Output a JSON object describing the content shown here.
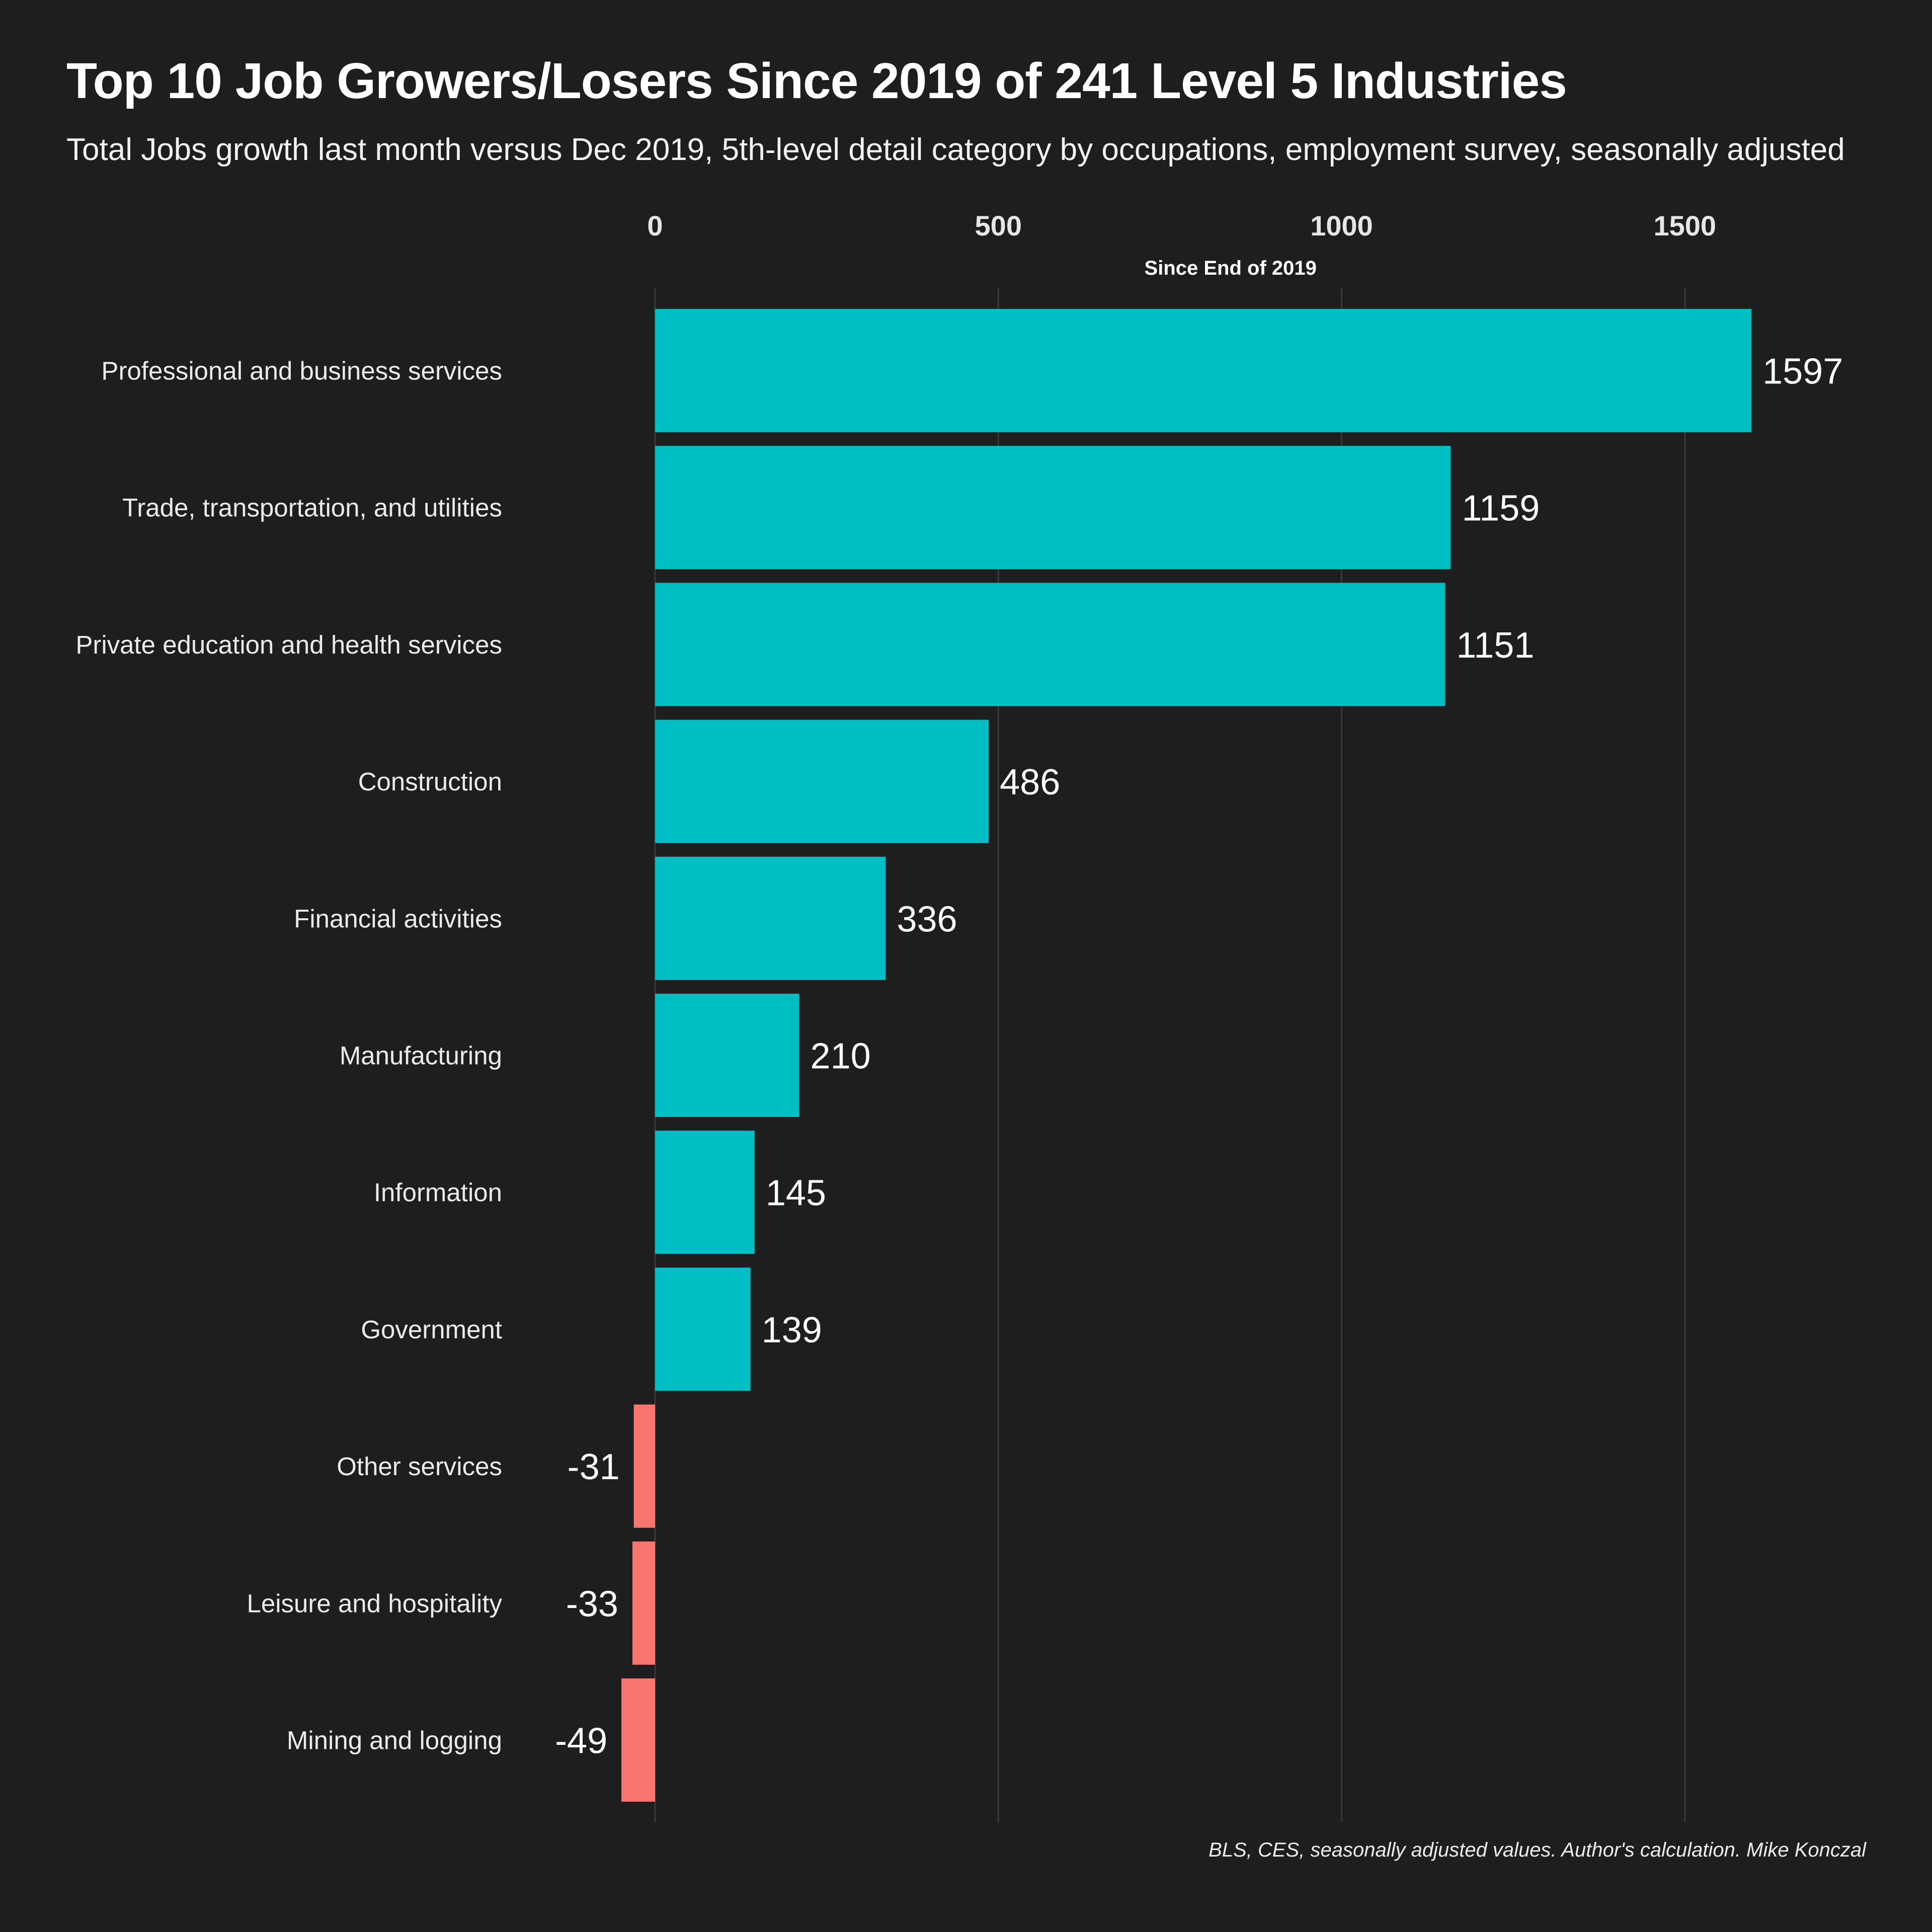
{
  "title": "Top 10 Job Growers/Losers Since 2019 of 241 Level 5 Industries",
  "subtitle": "Total Jobs growth last month versus Dec 2019, 5th-level detail category by occupations, employment survey, seasonally adjusted",
  "caption": "BLS, CES, seasonally adjusted values. Author's calculation. Mike Konczal",
  "chart_data": {
    "type": "bar",
    "orientation": "horizontal",
    "xlabel": "Since End of 2019",
    "ylabel": "",
    "xlim": [
      -80,
      1730
    ],
    "xticks": [
      0,
      500,
      1000,
      1500
    ],
    "x_axis_position": "top",
    "grid": "vertical",
    "legend": "none",
    "categories": [
      "Professional and business services",
      "Trade, transportation, and utilities",
      "Private education and health services",
      "Construction",
      "Financial activities",
      "Manufacturing",
      "Information",
      "Government",
      "Other services",
      "Leisure and hospitality",
      "Mining and logging"
    ],
    "values": [
      1597,
      1159,
      1151,
      486,
      336,
      210,
      145,
      139,
      -31,
      -33,
      -49
    ],
    "colors": {
      "positive": "#00bfc4",
      "negative": "#f8766d",
      "background": "#1e1e1f",
      "gridline": "#3a3a3c"
    }
  }
}
